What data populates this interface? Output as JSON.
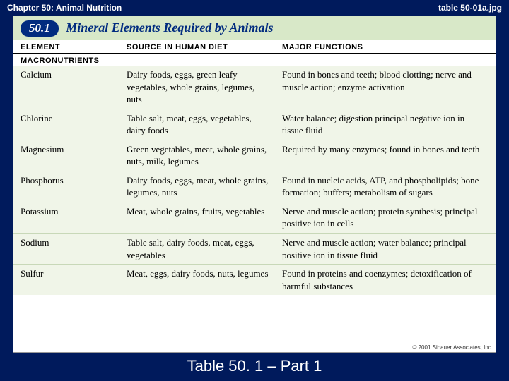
{
  "header": {
    "chapter": "Chapter 50: Animal Nutrition",
    "filename": "table 50-01a.jpg"
  },
  "table": {
    "number": "50.1",
    "title": "Mineral Elements Required by Animals",
    "columns": {
      "c1": "ELEMENT",
      "c2": "SOURCE IN HUMAN DIET",
      "c3": "MAJOR FUNCTIONS"
    },
    "section": "MACRONUTRIENTS",
    "rows": [
      {
        "element": "Calcium",
        "source": "Dairy foods, eggs, green leafy vegetables, whole grains, legumes, nuts",
        "function": "Found in bones and teeth; blood clotting; nerve and muscle action; enzyme activation"
      },
      {
        "element": "Chlorine",
        "source": "Table salt, meat, eggs, vegetables, dairy foods",
        "function": "Water balance; digestion principal negative ion in tissue fluid"
      },
      {
        "element": "Magnesium",
        "source": "Green vegetables, meat, whole grains, nuts, milk, legumes",
        "function": "Required by many enzymes; found in bones and teeth"
      },
      {
        "element": "Phosphorus",
        "source": "Dairy foods, eggs, meat, whole grains, legumes, nuts",
        "function": "Found in nucleic acids, ATP, and phospholipids; bone formation; buffers; metabolism of sugars"
      },
      {
        "element": "Potassium",
        "source": "Meat, whole grains, fruits, vegetables",
        "function": "Nerve and muscle action; protein synthesis; principal positive ion in cells"
      },
      {
        "element": "Sodium",
        "source": "Table salt, dairy foods, meat, eggs, vegetables",
        "function": "Nerve and muscle action; water balance; principal positive ion in tissue fluid"
      },
      {
        "element": "Sulfur",
        "source": "Meat, eggs, dairy foods, nuts, legumes",
        "function": "Found in proteins and coenzymes; detoxification of harmful substances"
      }
    ],
    "copyright": "© 2001 Sinauer Associates, Inc."
  },
  "caption": "Table 50. 1 – Part 1",
  "style": {
    "page_bg": "#001a5c",
    "band_bg": "#d8e8c8",
    "rows_bg": "#f0f5e8",
    "title_color": "#002b7f",
    "row_border": "#c8d8b8",
    "header_text_color": "#ffffff"
  }
}
